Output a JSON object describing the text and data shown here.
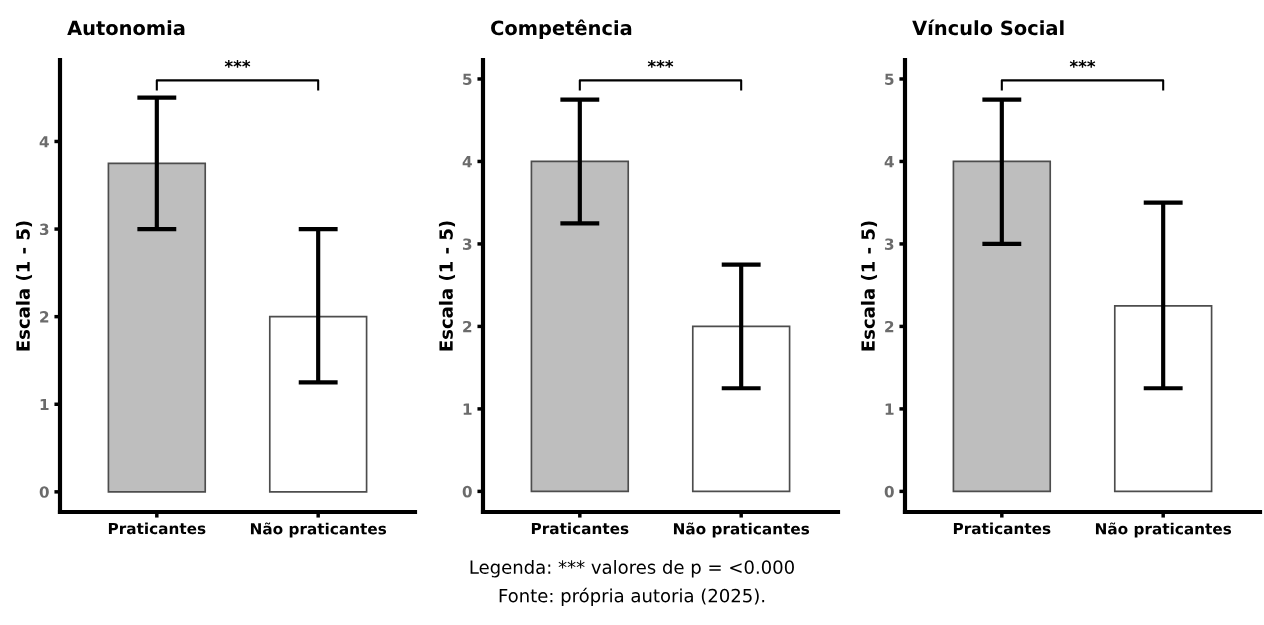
{
  "chart_data": [
    {
      "type": "bar",
      "title": "Autonomia",
      "ylabel": "Escala (1 - 5)",
      "categories": [
        "Praticantes",
        "Não praticantes"
      ],
      "values": [
        3.75,
        2.0
      ],
      "errors": [
        [
          3.0,
          4.5
        ],
        [
          1.25,
          3.0
        ]
      ],
      "colors": [
        "#bebebe",
        "#ffffff"
      ],
      "ylim": [
        -0.23,
        4.93
      ],
      "yticks": [
        0,
        1,
        2,
        3,
        4
      ],
      "grid": false,
      "legend": false,
      "annotations": [
        "***"
      ]
    },
    {
      "type": "bar",
      "title": "Competência",
      "ylabel": "Escala (1 - 5)",
      "categories": [
        "Praticantes",
        "Não praticantes"
      ],
      "values": [
        4.0,
        2.0
      ],
      "errors": [
        [
          3.25,
          4.75
        ],
        [
          1.25,
          2.75
        ]
      ],
      "colors": [
        "#bebebe",
        "#ffffff"
      ],
      "ylim": [
        -0.25,
        5.23
      ],
      "yticks": [
        0,
        1,
        2,
        3,
        4,
        5
      ],
      "grid": false,
      "legend": false,
      "annotations": [
        "***",
        "Legenda: *** valores de p = <0.000",
        "Fonte: própria autoria (2025)."
      ]
    },
    {
      "type": "bar",
      "title": "Vínculo Social",
      "ylabel": "Escala (1 - 5)",
      "categories": [
        "Praticantes",
        "Não praticantes"
      ],
      "values": [
        4.0,
        2.25
      ],
      "errors": [
        [
          3.0,
          4.75
        ],
        [
          1.25,
          3.5
        ]
      ],
      "colors": [
        "#bebebe",
        "#ffffff"
      ],
      "ylim": [
        -0.25,
        5.23
      ],
      "yticks": [
        0,
        1,
        2,
        3,
        4,
        5
      ],
      "grid": false,
      "legend": false,
      "annotations": [
        "***"
      ]
    }
  ]
}
